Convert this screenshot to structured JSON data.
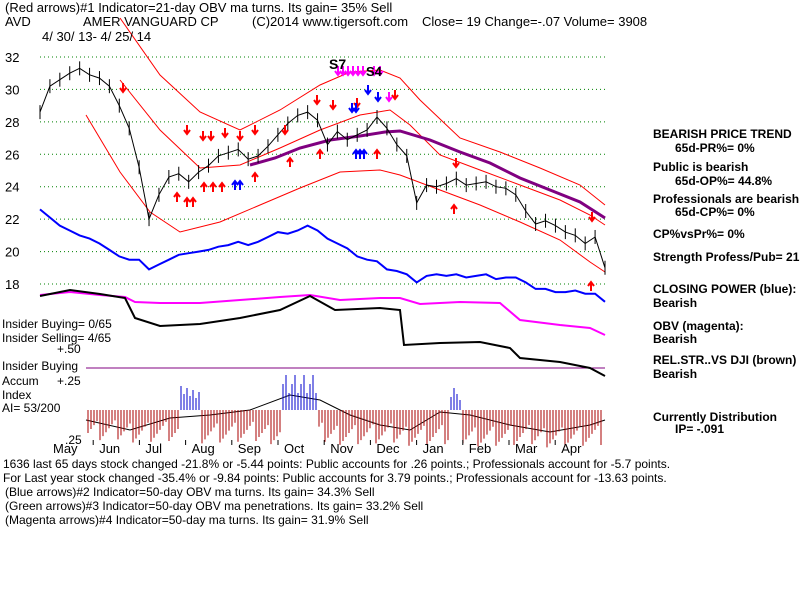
{
  "header": {
    "line1": "(Red arrows)#1 Indicator=21-day OBV ma turns. Its gain= 35% Sell",
    "ticker": "AVD",
    "company": "AMER VANGUARD CP",
    "copyright": "(C)2014 www.tigersoft.com",
    "quote": "Close=  19  Change=-.07 Volume= 3908",
    "date_range": "4/ 30/ 13- 4/ 25/ 14"
  },
  "left_panel": {
    "insider_buying": "Insider Buying= 0/65",
    "insider_selling": "Insider Selling= 4/65",
    "plus50": "+.50",
    "insider_buying_label": "Insider Buying",
    "accum": "Accum",
    "plus25": "+.25",
    "index": "Index",
    "ai": "AI= 53/200",
    "minus25": ".25"
  },
  "right_panel": {
    "trend_title": "BEARISH PRICE TREND",
    "pr": "65d-PR%= 0%",
    "public": "Public is bearish",
    "op": "65d-OP%= 44.8%",
    "professionals": "Professionals are bearish",
    "cp": "65d-CP%= 0%",
    "cpvspr": "CP%vsPr%=  0%",
    "strength": "Strength Profess/Pub= 21",
    "closing_power": "CLOSING POWER (blue):",
    "cp_state": "Bearish",
    "obv": "OBV (magenta):",
    "obv_state": "Bearish",
    "relstr": "REL.STR..VS DJI (brown)",
    "relstr_state": "Bearish",
    "distribution": "Currently Distribution",
    "ip": "IP= -.091"
  },
  "footer": {
    "line1": "1636 last 65 days stock changed -21.8% or -5.44 points:  Public accounts for  .26 points.;  Professionals account for -5.7 points.",
    "line2": "For Last year stock changed -35.4% or -9.84 points:  Public accounts for  3.79 points.;  Professionals account for -13.63 points.",
    "line3": "(Blue arrows)#2 Indicator=50-day OBV ma turns. Its gain= 34.3% Sell",
    "line4": "(Green arrows)#3 Indicator=50-day OBV ma penetrations. Its gain= 33.2% Sell",
    "line5": "(Magenta arrows)#4 Indicator=50-day ma turns. Its gain= 31.9% Sell"
  },
  "chart_data": {
    "type": "line",
    "price_axis": {
      "ticks": [
        32,
        30,
        28,
        26,
        24,
        22,
        20,
        18
      ],
      "ylim": [
        17.3,
        33
      ]
    },
    "months": [
      "May",
      "Jun",
      "Jul",
      "Aug",
      "Sep",
      "Oct",
      "Nov",
      "Dec",
      "Jan",
      "Feb",
      "Mar",
      "Apr"
    ],
    "signals": {
      "s7": "S7",
      "s4": "S4"
    },
    "colors": {
      "price": "#000000",
      "bands": "#ff0000",
      "ma50": "#800080",
      "closing_power": "#0000ff",
      "obv": "#ff00ff",
      "relstr": "#000000",
      "accum_pos": "#0000cc",
      "accum_neg": "#aa0000",
      "gridline": "#008000"
    },
    "series": [
      {
        "name": "Price",
        "values": [
          28.6,
          30.2,
          30.6,
          31.0,
          31.3,
          30.9,
          30.7,
          30.2,
          29.0,
          27.6,
          25.2,
          22.0,
          23.5,
          24.6,
          24.8,
          24.3,
          24.9,
          25.3,
          25.9,
          26.1,
          26.3,
          25.7,
          25.9,
          26.5,
          27.2,
          27.9,
          28.4,
          28.6,
          28.1,
          26.6,
          27.4,
          26.9,
          27.2,
          27.5,
          28.3,
          27.6,
          26.6,
          25.9,
          23.0,
          24.1,
          24.0,
          24.2,
          24.5,
          24.1,
          24.2,
          24.3,
          24.0,
          23.9,
          23.5,
          22.5,
          21.7,
          21.9,
          21.6,
          21.2,
          21.0,
          20.5,
          20.9,
          19.0
        ]
      },
      {
        "name": "CLOSING POWER",
        "values": [
          22.6,
          22.1,
          21.6,
          21.3,
          21.0,
          20.8,
          20.5,
          20.1,
          19.7,
          19.5,
          19.5,
          18.9,
          19.2,
          19.5,
          19.8,
          19.9,
          20.0,
          20.1,
          20.3,
          20.4,
          20.6,
          20.4,
          20.6,
          20.9,
          21.2,
          21.1,
          21.3,
          21.6,
          21.3,
          20.8,
          20.5,
          20.2,
          19.7,
          19.5,
          19.4,
          18.9,
          18.8,
          18.6,
          18.1,
          18.5,
          18.6,
          18.5,
          18.6,
          18.4,
          18.5,
          18.6,
          18.3,
          18.4,
          18.4,
          18.1,
          17.7,
          17.7,
          17.5,
          17.5,
          17.6,
          17.4,
          17.4,
          16.9
        ]
      }
    ]
  }
}
